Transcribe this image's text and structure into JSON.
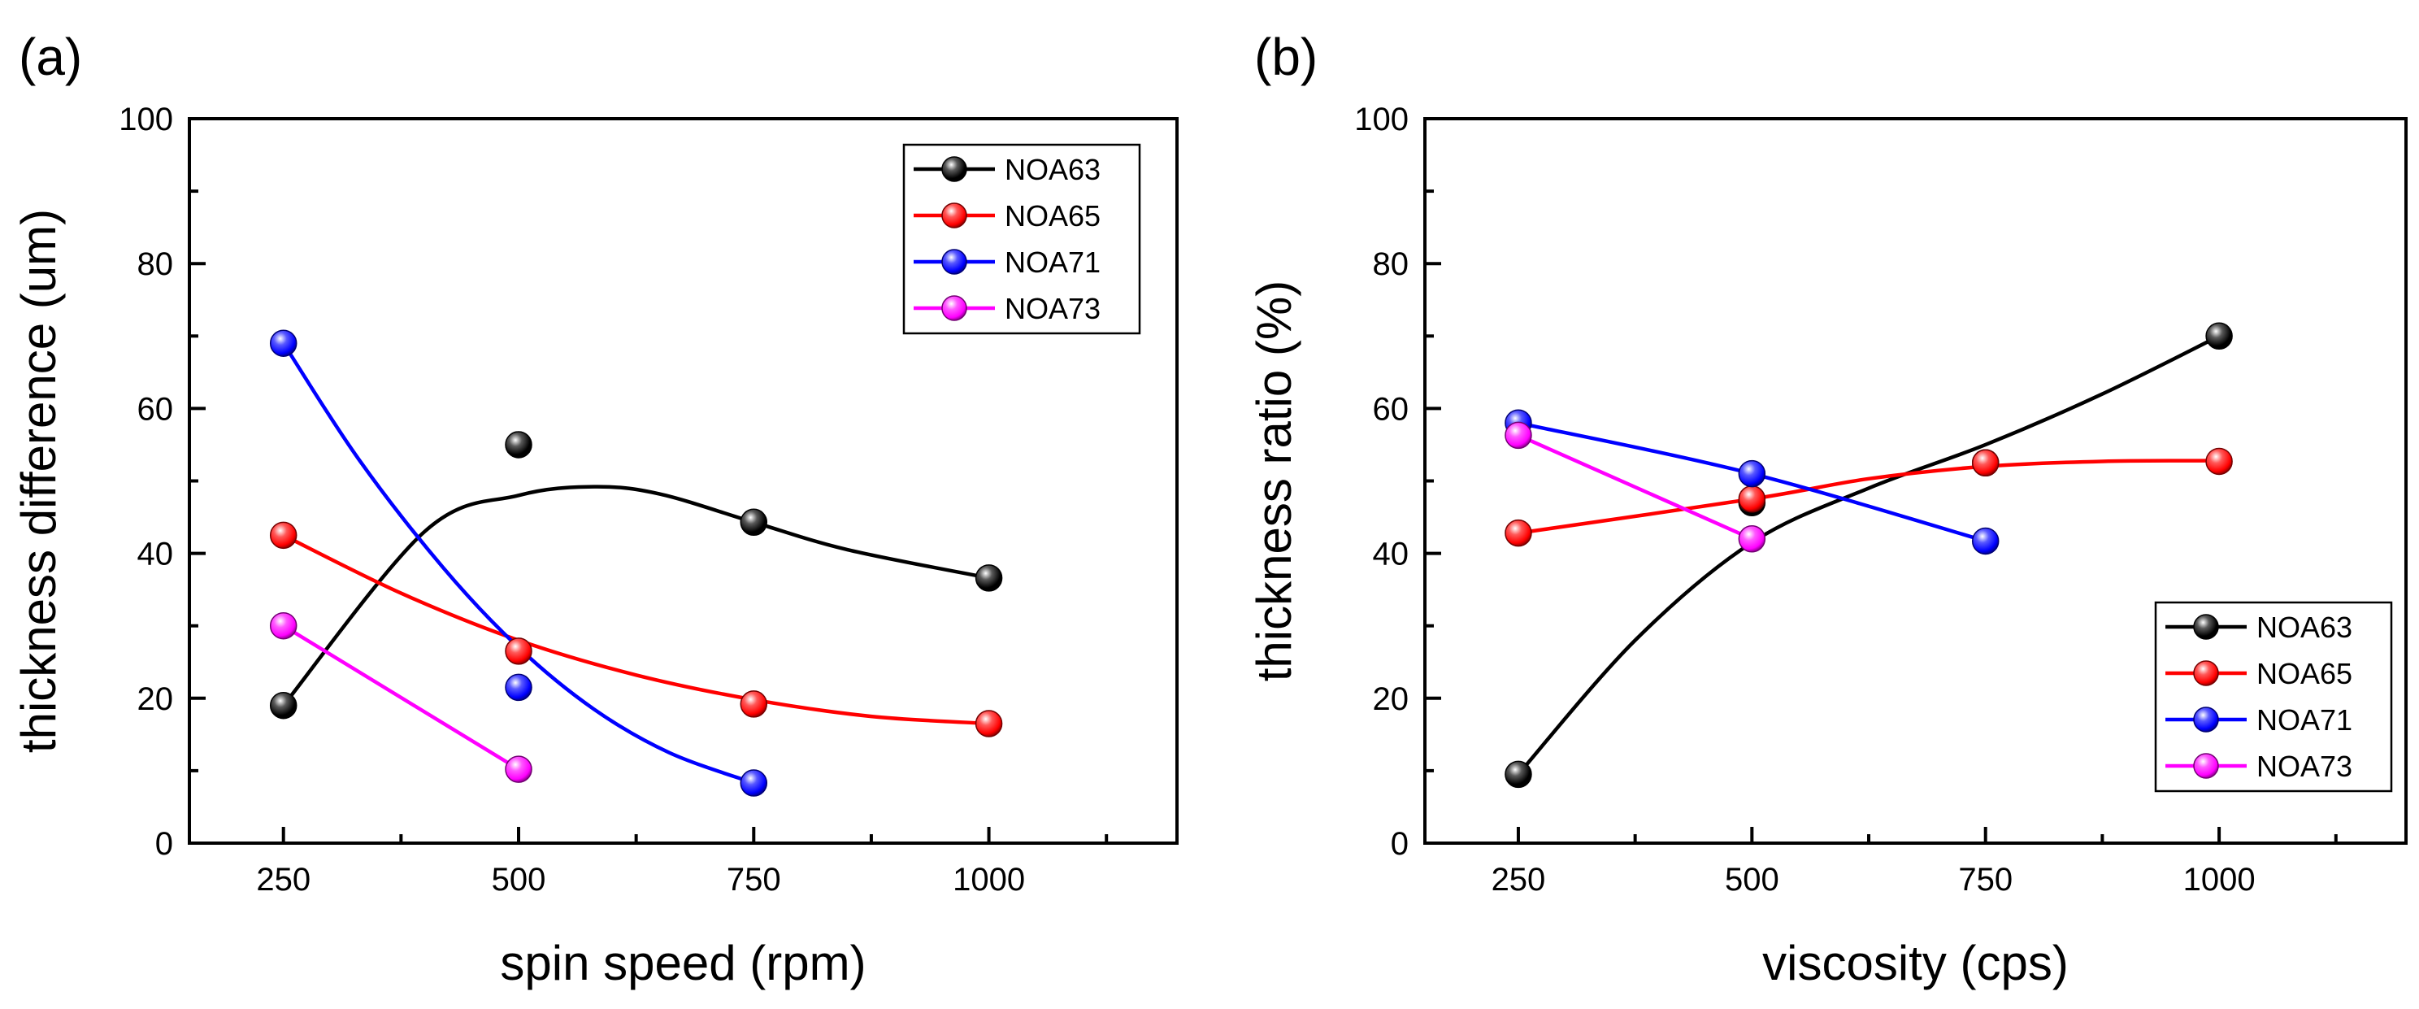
{
  "chart_data": [
    {
      "panel_label": "(a)",
      "type": "scatter",
      "xlabel": "spin speed (rpm)",
      "ylabel": "thickness difference (um)",
      "xlim": [
        150,
        1200
      ],
      "ylim": [
        0,
        100
      ],
      "xticks": [
        250,
        500,
        750,
        1000
      ],
      "yticks": [
        0,
        20,
        40,
        60,
        80,
        100
      ],
      "legend_position": "top-right",
      "series": [
        {
          "name": "NOA63",
          "color": "#000000",
          "points": [
            {
              "x": 250,
              "y": 19
            },
            {
              "x": 500,
              "y": 55
            },
            {
              "x": 750,
              "y": 44.3
            },
            {
              "x": 1000,
              "y": 36.6
            }
          ],
          "fit": [
            {
              "x": 250,
              "y": 19
            },
            {
              "x": 400,
              "y": 43
            },
            {
              "x": 500,
              "y": 48
            },
            {
              "x": 580,
              "y": 49.2
            },
            {
              "x": 650,
              "y": 48.2
            },
            {
              "x": 750,
              "y": 44.3
            },
            {
              "x": 850,
              "y": 40.5
            },
            {
              "x": 1000,
              "y": 36.6
            }
          ]
        },
        {
          "name": "NOA65",
          "color": "#ff0000",
          "points": [
            {
              "x": 250,
              "y": 42.5
            },
            {
              "x": 500,
              "y": 26.5
            },
            {
              "x": 750,
              "y": 19.2
            },
            {
              "x": 1000,
              "y": 16.5
            }
          ],
          "fit": [
            {
              "x": 250,
              "y": 42.5
            },
            {
              "x": 375,
              "y": 34.5
            },
            {
              "x": 500,
              "y": 28
            },
            {
              "x": 625,
              "y": 23.2
            },
            {
              "x": 750,
              "y": 19.8
            },
            {
              "x": 875,
              "y": 17.5
            },
            {
              "x": 1000,
              "y": 16.5
            }
          ]
        },
        {
          "name": "NOA71",
          "color": "#0000ff",
          "points": [
            {
              "x": 250,
              "y": 69
            },
            {
              "x": 500,
              "y": 21.5
            },
            {
              "x": 750,
              "y": 8.3
            }
          ],
          "fit": [
            {
              "x": 250,
              "y": 69
            },
            {
              "x": 330,
              "y": 53
            },
            {
              "x": 420,
              "y": 38
            },
            {
              "x": 500,
              "y": 27
            },
            {
              "x": 580,
              "y": 18.5
            },
            {
              "x": 660,
              "y": 12.5
            },
            {
              "x": 750,
              "y": 8.3
            }
          ]
        },
        {
          "name": "NOA73",
          "color": "#ff00ff",
          "points": [
            {
              "x": 250,
              "y": 30
            },
            {
              "x": 500,
              "y": 10.2
            }
          ],
          "fit": [
            {
              "x": 250,
              "y": 30
            },
            {
              "x": 500,
              "y": 10.2
            }
          ]
        }
      ]
    },
    {
      "panel_label": "(b)",
      "type": "scatter",
      "xlabel": "viscosity (cps)",
      "ylabel": "thickness ratio (%)",
      "xlim": [
        150,
        1200
      ],
      "ylim": [
        0,
        100
      ],
      "xticks": [
        250,
        500,
        750,
        1000
      ],
      "yticks": [
        0,
        20,
        40,
        60,
        80,
        100
      ],
      "legend_position": "bottom-right",
      "series": [
        {
          "name": "NOA63",
          "color": "#000000",
          "points": [
            {
              "x": 250,
              "y": 9.5
            },
            {
              "x": 500,
              "y": 47
            },
            {
              "x": 750,
              "y": 52.5
            },
            {
              "x": 1000,
              "y": 70
            }
          ],
          "fit": [
            {
              "x": 250,
              "y": 9.5
            },
            {
              "x": 375,
              "y": 28
            },
            {
              "x": 500,
              "y": 41.5
            },
            {
              "x": 625,
              "y": 49
            },
            {
              "x": 750,
              "y": 55
            },
            {
              "x": 875,
              "y": 62
            },
            {
              "x": 1000,
              "y": 70
            }
          ]
        },
        {
          "name": "NOA65",
          "color": "#ff0000",
          "points": [
            {
              "x": 250,
              "y": 42.8
            },
            {
              "x": 500,
              "y": 47.5
            },
            {
              "x": 750,
              "y": 52.5
            },
            {
              "x": 1000,
              "y": 52.7
            }
          ],
          "fit": [
            {
              "x": 250,
              "y": 42.8
            },
            {
              "x": 500,
              "y": 47.5
            },
            {
              "x": 625,
              "y": 50.3
            },
            {
              "x": 750,
              "y": 52
            },
            {
              "x": 875,
              "y": 52.7
            },
            {
              "x": 1000,
              "y": 52.8
            }
          ]
        },
        {
          "name": "NOA71",
          "color": "#0000ff",
          "points": [
            {
              "x": 250,
              "y": 58
            },
            {
              "x": 500,
              "y": 51
            },
            {
              "x": 750,
              "y": 41.7
            }
          ],
          "fit": [
            {
              "x": 250,
              "y": 58
            },
            {
              "x": 500,
              "y": 51
            },
            {
              "x": 750,
              "y": 41.7
            }
          ]
        },
        {
          "name": "NOA73",
          "color": "#ff00ff",
          "points": [
            {
              "x": 250,
              "y": 56.3
            },
            {
              "x": 500,
              "y": 42
            }
          ],
          "fit": [
            {
              "x": 250,
              "y": 56.3
            },
            {
              "x": 500,
              "y": 42
            }
          ]
        }
      ]
    }
  ]
}
